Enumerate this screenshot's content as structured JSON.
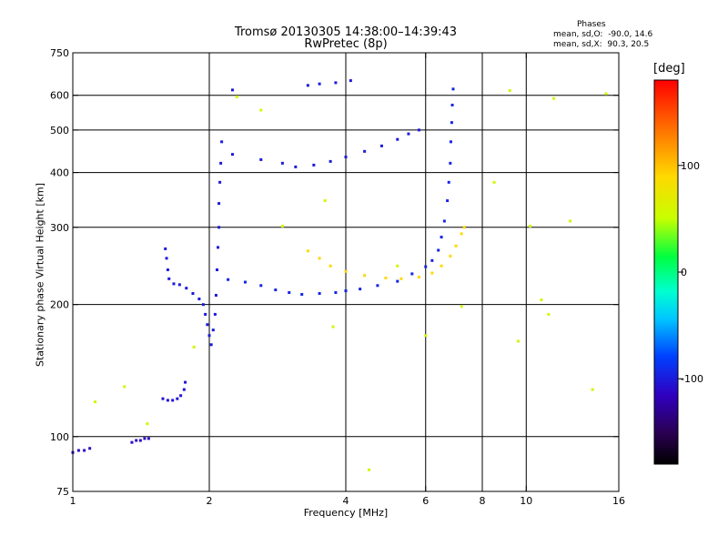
{
  "header": {
    "title": "Tromsø 20130305 14:38:00–14:39:43",
    "subtitle": "RwPretec (8p)"
  },
  "phase_info": {
    "title": "Phases",
    "line_o": "mean, sd,O:  -90.0, 14.6",
    "line_x": "mean, sd,X:  90.3, 20.5"
  },
  "colorbar": {
    "label": "[deg]",
    "ticks": [
      {
        "value": 100,
        "label": "100"
      },
      {
        "value": 0,
        "label": "0"
      },
      {
        "value": -100,
        "label": "-100"
      }
    ],
    "range": [
      -180,
      180
    ]
  },
  "chart_data": {
    "type": "scatter",
    "title": "Tromsø 20130305 14:38:00–14:39:43",
    "subtitle": "RwPretec (8p)",
    "xlabel": "Frequency [MHz]",
    "ylabel": "Stationary phase Virtual Height [km]",
    "x_scale": "log",
    "y_scale": "log",
    "xlim": [
      1,
      16
    ],
    "ylim": [
      75,
      750
    ],
    "x_ticks": [
      1,
      2,
      4,
      6,
      8,
      10,
      16
    ],
    "y_ticks": [
      75,
      100,
      200,
      300,
      400,
      500,
      600,
      750
    ],
    "x_grid": [
      2,
      4,
      6,
      8,
      10
    ],
    "y_grid": [
      100,
      200,
      300,
      400,
      500,
      600
    ],
    "color_scale": "phase [deg], -180 to 180",
    "series": [
      {
        "trace": "low-freq-echo",
        "phase": -110,
        "points": [
          [
            1.0,
            92
          ],
          [
            1.03,
            93
          ],
          [
            1.06,
            93
          ],
          [
            1.09,
            94
          ],
          [
            1.35,
            97
          ],
          [
            1.38,
            98
          ],
          [
            1.41,
            98
          ],
          [
            1.44,
            99
          ],
          [
            1.47,
            99
          ]
        ]
      },
      {
        "trace": "e-layer-echo",
        "phase": -105,
        "points": [
          [
            1.58,
            122
          ],
          [
            1.62,
            121
          ],
          [
            1.66,
            121
          ],
          [
            1.7,
            122
          ],
          [
            1.73,
            124
          ],
          [
            1.76,
            128
          ],
          [
            1.77,
            133
          ]
        ]
      },
      {
        "trace": "f1-cusp",
        "phase": -100,
        "points": [
          [
            1.6,
            268
          ],
          [
            1.61,
            255
          ],
          [
            1.62,
            240
          ],
          [
            1.63,
            229
          ],
          [
            1.67,
            223
          ],
          [
            1.72,
            222
          ],
          [
            1.78,
            218
          ],
          [
            1.84,
            212
          ],
          [
            1.9,
            206
          ],
          [
            1.94,
            200
          ],
          [
            1.96,
            190
          ],
          [
            1.98,
            180
          ],
          [
            2.0,
            170
          ],
          [
            2.02,
            162
          ],
          [
            2.04,
            175
          ],
          [
            2.06,
            190
          ],
          [
            2.07,
            210
          ],
          [
            2.08,
            240
          ],
          [
            2.09,
            270
          ],
          [
            2.1,
            300
          ],
          [
            2.1,
            340
          ],
          [
            2.11,
            380
          ],
          [
            2.12,
            420
          ],
          [
            2.13,
            470
          ]
        ]
      },
      {
        "trace": "f-layer-o-mode",
        "phase": -95,
        "points": [
          [
            2.2,
            228
          ],
          [
            2.4,
            225
          ],
          [
            2.6,
            221
          ],
          [
            2.8,
            216
          ],
          [
            3.0,
            213
          ],
          [
            3.2,
            211
          ],
          [
            3.5,
            212
          ],
          [
            3.8,
            213
          ],
          [
            4.0,
            215
          ],
          [
            4.3,
            217
          ],
          [
            4.7,
            221
          ],
          [
            5.2,
            226
          ],
          [
            5.6,
            235
          ],
          [
            6.0,
            244
          ],
          [
            6.2,
            252
          ],
          [
            6.4,
            266
          ],
          [
            6.5,
            285
          ],
          [
            6.6,
            310
          ],
          [
            6.7,
            345
          ],
          [
            6.75,
            380
          ],
          [
            6.8,
            420
          ],
          [
            6.82,
            470
          ],
          [
            6.85,
            520
          ],
          [
            6.87,
            570
          ],
          [
            6.9,
            620
          ]
        ]
      },
      {
        "trace": "f-layer-x-mode",
        "phase": 90,
        "points": [
          [
            3.3,
            265
          ],
          [
            3.5,
            255
          ],
          [
            3.7,
            245
          ],
          [
            4.0,
            238
          ],
          [
            4.4,
            233
          ],
          [
            4.9,
            230
          ],
          [
            5.3,
            229
          ],
          [
            5.8,
            231
          ],
          [
            6.2,
            236
          ],
          [
            6.5,
            245
          ],
          [
            6.8,
            258
          ],
          [
            7.0,
            272
          ],
          [
            7.2,
            290
          ],
          [
            7.3,
            300
          ]
        ]
      },
      {
        "trace": "multihop-echo",
        "phase": -100,
        "points": [
          [
            2.25,
            440
          ],
          [
            2.6,
            428
          ],
          [
            2.9,
            420
          ],
          [
            3.1,
            412
          ],
          [
            3.4,
            416
          ],
          [
            3.7,
            424
          ],
          [
            4.0,
            434
          ],
          [
            4.4,
            447
          ],
          [
            4.8,
            460
          ],
          [
            5.2,
            476
          ],
          [
            5.5,
            490
          ],
          [
            5.8,
            500
          ],
          [
            3.3,
            632
          ],
          [
            3.5,
            637
          ],
          [
            3.8,
            641
          ],
          [
            4.1,
            648
          ],
          [
            2.25,
            617
          ]
        ]
      },
      {
        "trace": "scattered-noise",
        "phase": 60,
        "points": [
          [
            1.12,
            120
          ],
          [
            1.3,
            130
          ],
          [
            1.46,
            107
          ],
          [
            1.85,
            160
          ],
          [
            2.3,
            595
          ],
          [
            2.6,
            555
          ],
          [
            2.9,
            302
          ],
          [
            3.6,
            345
          ],
          [
            3.75,
            178
          ],
          [
            4.5,
            84
          ],
          [
            5.2,
            245
          ],
          [
            6.0,
            170
          ],
          [
            7.2,
            198
          ],
          [
            8.5,
            380
          ],
          [
            9.2,
            615
          ],
          [
            9.6,
            165
          ],
          [
            10.2,
            302
          ],
          [
            10.8,
            205
          ],
          [
            11.2,
            190
          ],
          [
            11.5,
            590
          ],
          [
            12.5,
            310
          ],
          [
            14.0,
            128
          ],
          [
            15.0,
            605
          ]
        ]
      }
    ]
  }
}
